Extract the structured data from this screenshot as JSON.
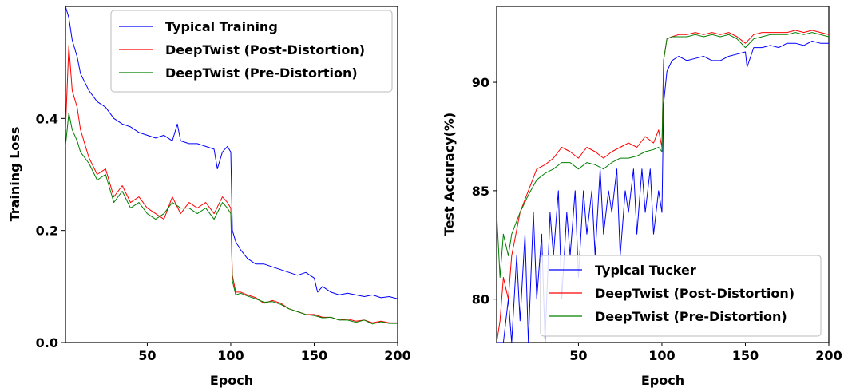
{
  "chart_data": [
    {
      "type": "line",
      "xlabel": "Epoch",
      "ylabel": "Training Loss",
      "xlim": [
        1,
        200
      ],
      "ylim": [
        0.0,
        0.6
      ],
      "xticks": [
        50,
        100,
        150,
        200
      ],
      "yticks": [
        0.0,
        0.2,
        0.4
      ],
      "xtick_labels": [
        "50",
        "100",
        "150",
        "200"
      ],
      "ytick_labels": [
        "0.0",
        "0.2",
        "0.4"
      ],
      "legend_position": "top-right",
      "series": [
        {
          "name": "Typical Training",
          "color": "#0000ff",
          "x": [
            1,
            3,
            5,
            8,
            10,
            15,
            20,
            25,
            30,
            35,
            40,
            45,
            50,
            55,
            60,
            65,
            68,
            70,
            75,
            80,
            85,
            90,
            92,
            95,
            98,
            100,
            101,
            103,
            106,
            110,
            115,
            120,
            125,
            130,
            135,
            140,
            145,
            150,
            152,
            155,
            160,
            165,
            170,
            175,
            180,
            185,
            190,
            195,
            200
          ],
          "y": [
            0.6,
            0.58,
            0.54,
            0.51,
            0.48,
            0.45,
            0.43,
            0.42,
            0.4,
            0.39,
            0.385,
            0.375,
            0.37,
            0.365,
            0.37,
            0.36,
            0.39,
            0.36,
            0.355,
            0.355,
            0.35,
            0.345,
            0.31,
            0.34,
            0.35,
            0.34,
            0.2,
            0.18,
            0.165,
            0.15,
            0.14,
            0.14,
            0.135,
            0.13,
            0.125,
            0.12,
            0.125,
            0.115,
            0.09,
            0.1,
            0.09,
            0.085,
            0.088,
            0.085,
            0.082,
            0.085,
            0.08,
            0.082,
            0.078
          ]
        },
        {
          "name": "DeepTwist (Post-Distortion)",
          "color": "#ff0000",
          "x": [
            1,
            3,
            5,
            8,
            10,
            15,
            20,
            25,
            30,
            35,
            40,
            45,
            50,
            55,
            60,
            65,
            70,
            75,
            80,
            85,
            90,
            95,
            98,
            100,
            101,
            103,
            106,
            110,
            115,
            120,
            125,
            130,
            135,
            140,
            145,
            150,
            155,
            160,
            165,
            170,
            175,
            180,
            185,
            190,
            195,
            200
          ],
          "y": [
            0.38,
            0.53,
            0.45,
            0.42,
            0.38,
            0.33,
            0.3,
            0.31,
            0.26,
            0.28,
            0.25,
            0.26,
            0.24,
            0.23,
            0.22,
            0.26,
            0.23,
            0.25,
            0.24,
            0.25,
            0.23,
            0.26,
            0.25,
            0.24,
            0.12,
            0.09,
            0.09,
            0.085,
            0.08,
            0.07,
            0.075,
            0.07,
            0.06,
            0.055,
            0.05,
            0.05,
            0.045,
            0.045,
            0.04,
            0.042,
            0.038,
            0.04,
            0.035,
            0.038,
            0.035,
            0.035
          ]
        },
        {
          "name": "DeepTwist (Pre-Distortion)",
          "color": "#008000",
          "x": [
            1,
            3,
            5,
            8,
            10,
            15,
            20,
            25,
            30,
            35,
            40,
            45,
            50,
            55,
            60,
            65,
            70,
            75,
            80,
            85,
            90,
            95,
            98,
            100,
            101,
            103,
            106,
            110,
            115,
            120,
            125,
            130,
            135,
            140,
            145,
            150,
            155,
            160,
            165,
            170,
            175,
            180,
            185,
            190,
            195,
            200
          ],
          "y": [
            0.35,
            0.41,
            0.38,
            0.36,
            0.34,
            0.32,
            0.29,
            0.3,
            0.25,
            0.27,
            0.24,
            0.25,
            0.23,
            0.22,
            0.23,
            0.25,
            0.24,
            0.24,
            0.23,
            0.24,
            0.22,
            0.25,
            0.24,
            0.23,
            0.11,
            0.085,
            0.088,
            0.083,
            0.078,
            0.072,
            0.073,
            0.068,
            0.06,
            0.055,
            0.05,
            0.048,
            0.044,
            0.045,
            0.04,
            0.04,
            0.036,
            0.04,
            0.033,
            0.037,
            0.034,
            0.034
          ]
        }
      ]
    },
    {
      "type": "line",
      "xlabel": "Epoch",
      "ylabel": "Test Accuracy(%)",
      "xlim": [
        1,
        200
      ],
      "ylim": [
        78,
        93.5
      ],
      "xticks": [
        50,
        100,
        150,
        200
      ],
      "yticks": [
        80,
        85,
        90
      ],
      "xtick_labels": [
        "50",
        "100",
        "150",
        "200"
      ],
      "ytick_labels": [
        "80",
        "85",
        "90"
      ],
      "legend_position": "bottom-right",
      "series": [
        {
          "name": "Typical Tucker",
          "color": "#0000ff",
          "x": [
            1,
            5,
            8,
            10,
            13,
            15,
            18,
            20,
            23,
            25,
            28,
            30,
            33,
            35,
            38,
            40,
            43,
            45,
            48,
            50,
            53,
            55,
            58,
            60,
            63,
            65,
            68,
            70,
            73,
            75,
            78,
            80,
            83,
            85,
            88,
            90,
            93,
            95,
            98,
            100,
            101,
            103,
            106,
            110,
            115,
            120,
            125,
            130,
            135,
            140,
            145,
            150,
            151,
            155,
            160,
            165,
            170,
            175,
            180,
            185,
            190,
            195,
            200
          ],
          "y": [
            78,
            78,
            80,
            78,
            82,
            79,
            83,
            78,
            84,
            80,
            83,
            78,
            84,
            82,
            85,
            80,
            84,
            82,
            85,
            81,
            85,
            83,
            85,
            82,
            86,
            83,
            85,
            84,
            86,
            82,
            85,
            84,
            86,
            83,
            86,
            84,
            86,
            83,
            85,
            84,
            89,
            90.5,
            91,
            91.2,
            91,
            91.1,
            91.2,
            91,
            91,
            91.2,
            91.3,
            91.4,
            90.7,
            91.6,
            91.6,
            91.7,
            91.6,
            91.8,
            91.8,
            91.7,
            91.9,
            91.8,
            91.8
          ]
        },
        {
          "name": "DeepTwist (Post-Distortion)",
          "color": "#ff0000",
          "x": [
            1,
            3,
            5,
            8,
            10,
            15,
            20,
            25,
            30,
            35,
            40,
            45,
            50,
            55,
            60,
            65,
            70,
            75,
            80,
            85,
            90,
            95,
            98,
            100,
            101,
            103,
            106,
            110,
            115,
            120,
            125,
            130,
            135,
            140,
            145,
            150,
            155,
            160,
            165,
            170,
            175,
            180,
            185,
            190,
            195,
            200
          ],
          "y": [
            78,
            79,
            81,
            80,
            82,
            84,
            85,
            86,
            86.2,
            86.5,
            87,
            86.8,
            86.5,
            87,
            86.8,
            86.5,
            86.8,
            87,
            87.2,
            87,
            87.5,
            87.2,
            87.8,
            87,
            91,
            92,
            92.1,
            92.2,
            92.2,
            92.3,
            92.2,
            92.3,
            92.2,
            92.3,
            92.1,
            91.8,
            92.2,
            92.3,
            92.3,
            92.3,
            92.3,
            92.4,
            92.3,
            92.4,
            92.3,
            92.2
          ]
        },
        {
          "name": "DeepTwist (Pre-Distortion)",
          "color": "#008000",
          "x": [
            1,
            3,
            5,
            8,
            10,
            15,
            20,
            25,
            30,
            35,
            40,
            45,
            50,
            55,
            60,
            65,
            70,
            75,
            80,
            85,
            90,
            95,
            98,
            100,
            101,
            103,
            106,
            110,
            115,
            120,
            125,
            130,
            135,
            140,
            145,
            150,
            155,
            160,
            165,
            170,
            175,
            180,
            185,
            190,
            195,
            200
          ],
          "y": [
            84,
            81,
            83,
            82,
            83,
            84,
            84.8,
            85.5,
            85.8,
            86,
            86.3,
            86.3,
            86,
            86.3,
            86.2,
            86,
            86.3,
            86.5,
            86.5,
            86.6,
            86.8,
            86.9,
            87,
            86.8,
            91,
            92,
            92.1,
            92.1,
            92.1,
            92.2,
            92.1,
            92.2,
            92.1,
            92.2,
            92,
            91.6,
            92,
            92.1,
            92.2,
            92.2,
            92.2,
            92.3,
            92.2,
            92.3,
            92.2,
            92.1
          ]
        }
      ]
    }
  ]
}
